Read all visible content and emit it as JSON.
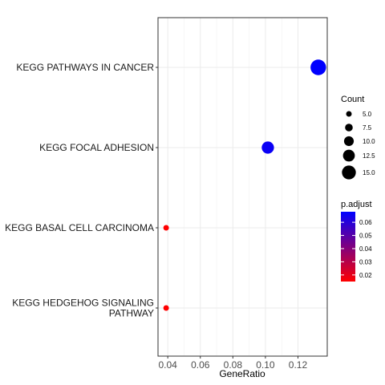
{
  "chart_data": {
    "type": "scatter",
    "xlabel": "GeneRatio",
    "ylabel": "",
    "xlim": [
      0.034,
      0.138
    ],
    "x_ticks": [
      {
        "value": 0.04,
        "label": "0.04"
      },
      {
        "value": 0.06,
        "label": "0.06"
      },
      {
        "value": 0.08,
        "label": "0.08"
      },
      {
        "value": 0.1,
        "label": "0.10"
      },
      {
        "value": 0.12,
        "label": "0.12"
      }
    ],
    "categories": [
      {
        "lines": [
          "KEGG PATHWAYS IN CANCER"
        ]
      },
      {
        "lines": [
          "KEGG FOCAL ADHESION"
        ]
      },
      {
        "lines": [
          "KEGG BASAL CELL CARCINOMA"
        ]
      },
      {
        "lines": [
          "KEGG HEDGEHOG SIGNALING",
          "PATHWAY"
        ]
      }
    ],
    "points": [
      {
        "category": 0,
        "x": 0.1325,
        "count": 17,
        "p_adjust": 0.068
      },
      {
        "category": 1,
        "x": 0.1015,
        "count": 13,
        "p_adjust": 0.066
      },
      {
        "category": 2,
        "x": 0.039,
        "count": 5,
        "p_adjust": 0.015
      },
      {
        "category": 3,
        "x": 0.039,
        "count": 5,
        "p_adjust": 0.015
      }
    ],
    "size_legend": {
      "title": "Count",
      "min_count": 5,
      "max_count": 17,
      "entries": [
        {
          "value": 5.0,
          "label": "5.0"
        },
        {
          "value": 7.5,
          "label": "7.5"
        },
        {
          "value": 10.0,
          "label": "10.0"
        },
        {
          "value": 12.5,
          "label": "12.5"
        },
        {
          "value": 15.0,
          "label": "15.0"
        }
      ]
    },
    "color_legend": {
      "title": "p.adjust",
      "min": 0.015,
      "max": 0.068,
      "low_color": "#ff0000",
      "high_color": "#0000ff",
      "ticks": [
        {
          "value": 0.02,
          "label": "0.02"
        },
        {
          "value": 0.03,
          "label": "0.03"
        },
        {
          "value": 0.04,
          "label": "0.04"
        },
        {
          "value": 0.05,
          "label": "0.05"
        },
        {
          "value": 0.06,
          "label": "0.06"
        }
      ]
    },
    "grid": true,
    "legend_position": "right"
  }
}
